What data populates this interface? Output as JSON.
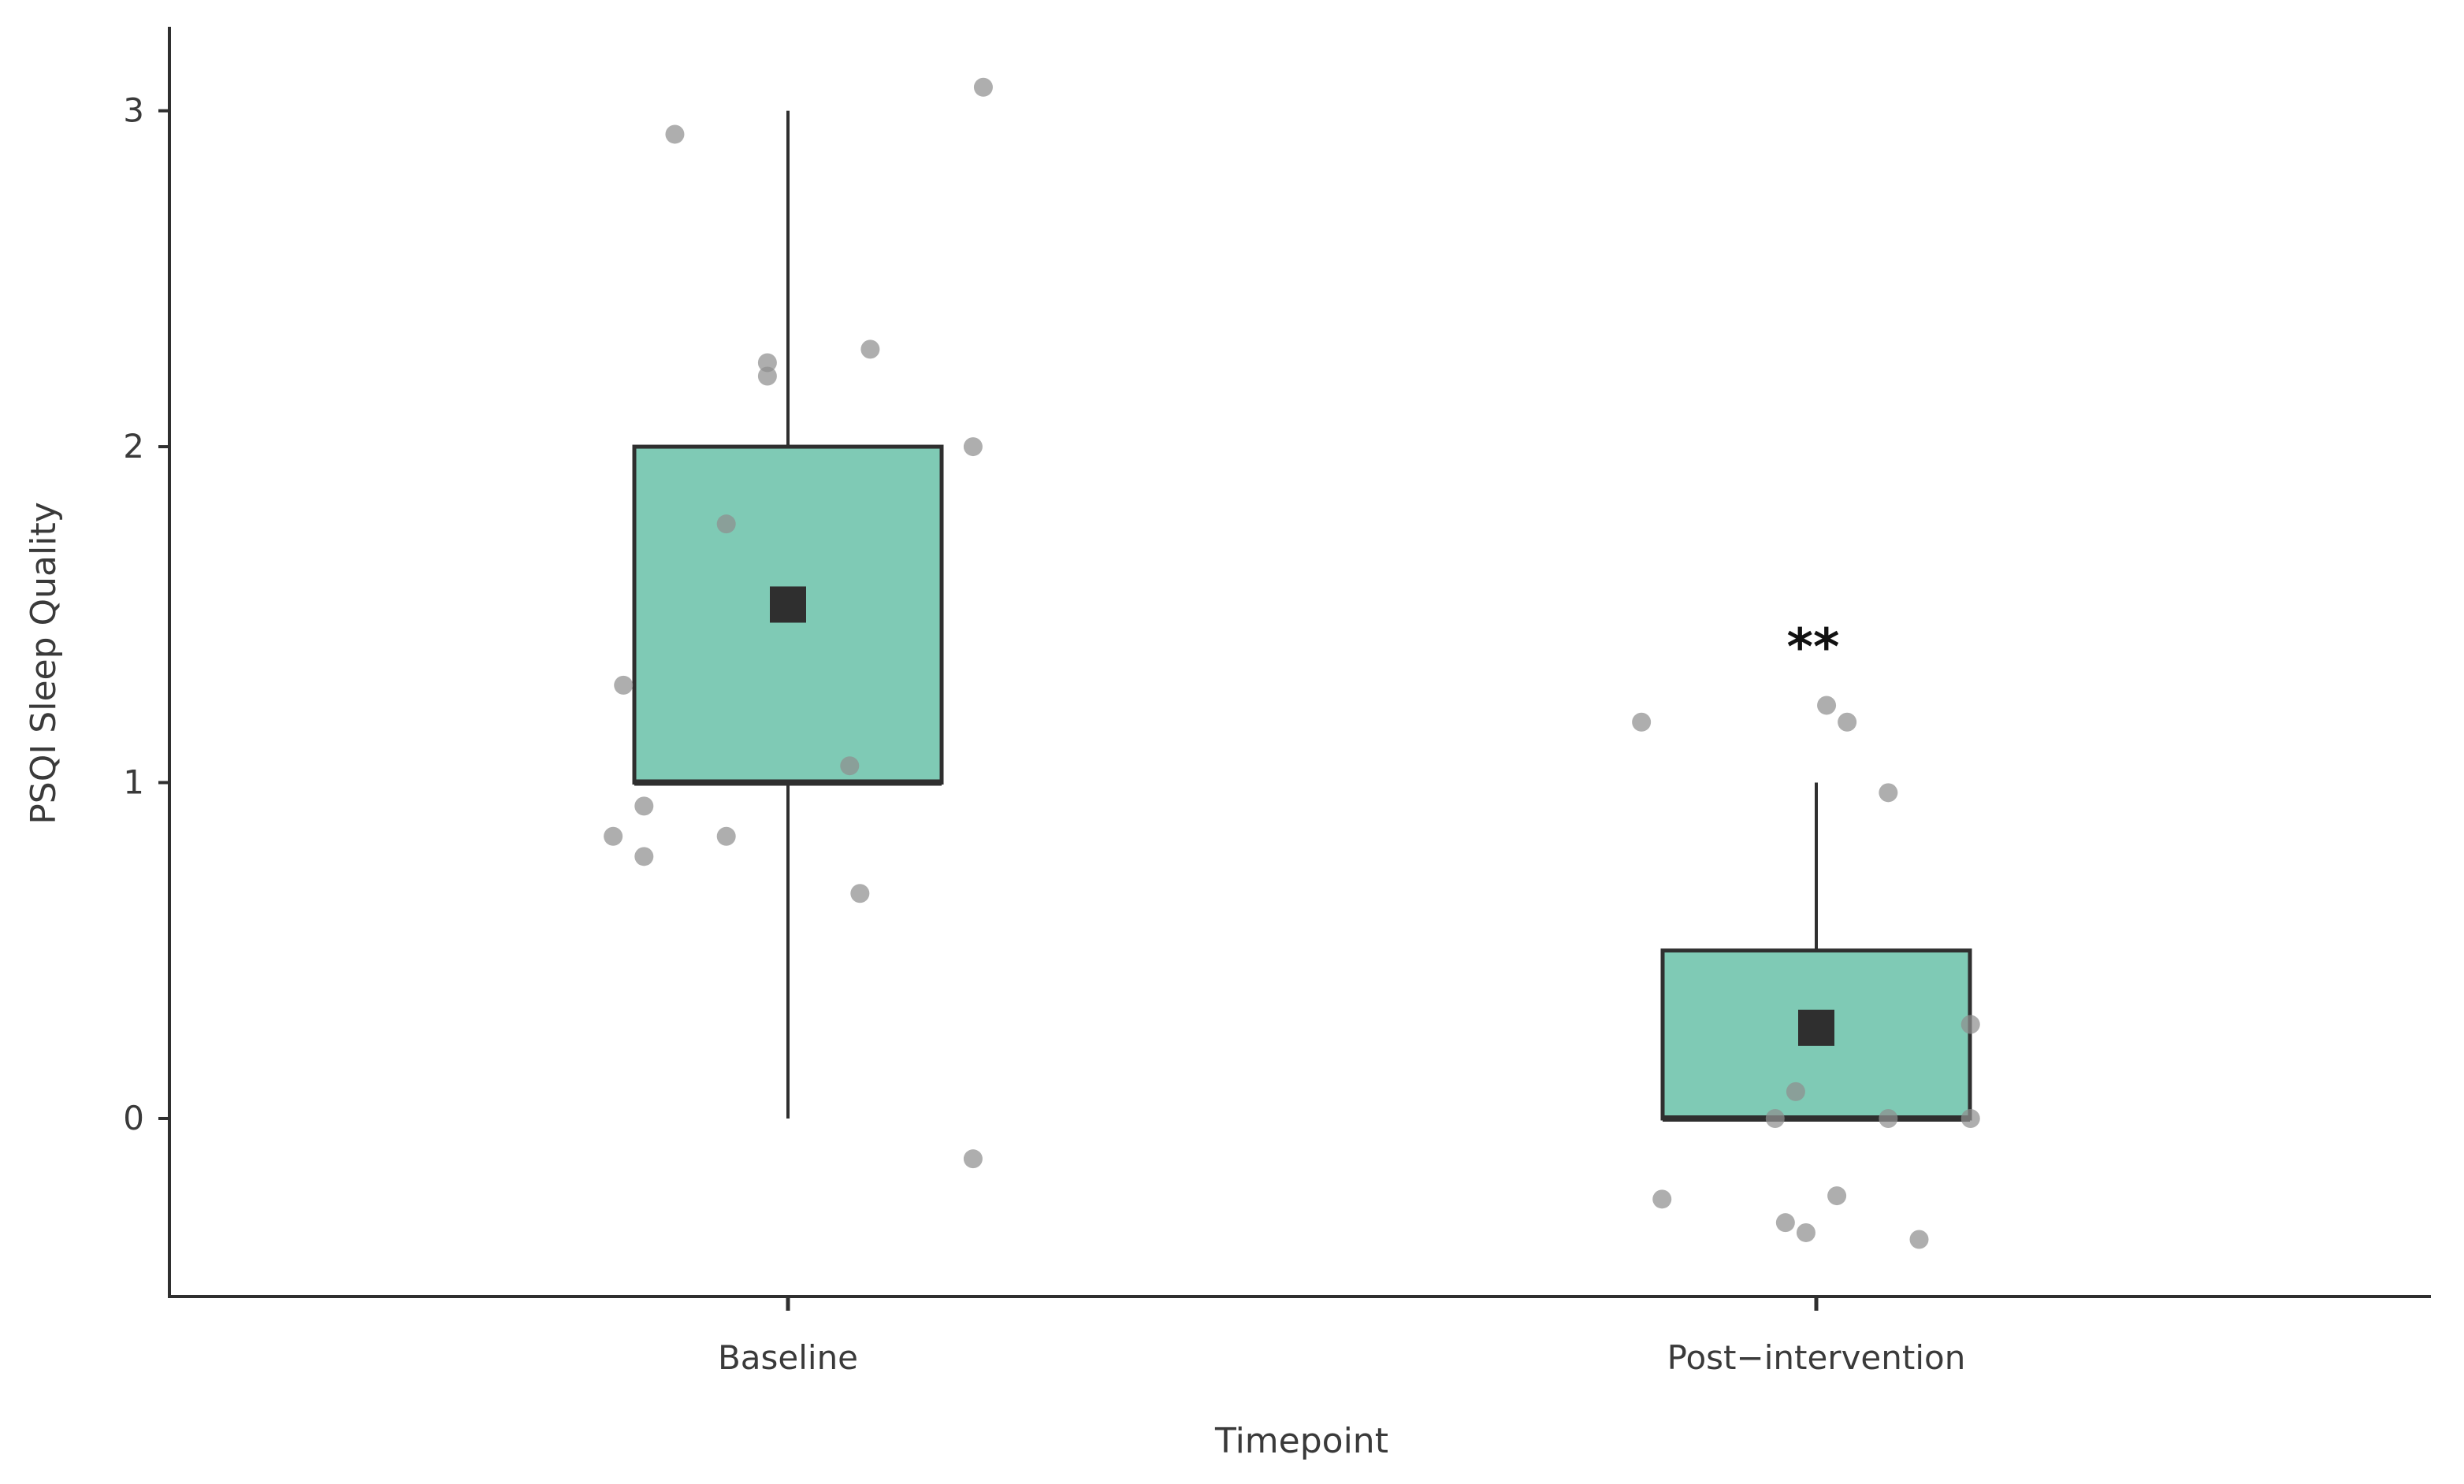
{
  "chart_data": {
    "type": "box",
    "xlabel": "Timepoint",
    "ylabel": "PSQI Sleep Quality",
    "categories": [
      "Baseline",
      "Post−intervention"
    ],
    "ylim": [
      -0.53,
      3.25
    ],
    "yticks": [
      0,
      1,
      2,
      3
    ],
    "grid": false,
    "legend": "none",
    "colors": {
      "box_fill": "#7fcab5",
      "box_stroke": "#2f2f2f",
      "point": "#8f8f8f",
      "mean": "#2f2f2f",
      "axis": "#2f2f2f"
    },
    "boxes": [
      {
        "category": "Baseline",
        "whisker_low": 0,
        "q1": 1,
        "median": 1,
        "q3": 2,
        "whisker_high": 3,
        "mean": 1.53,
        "annotation": ""
      },
      {
        "category": "Post−intervention",
        "whisker_low": 0,
        "q1": 0,
        "median": 0,
        "q3": 0.5,
        "whisker_high": 1,
        "mean": 0.27,
        "annotation": "**"
      }
    ],
    "points": [
      {
        "category": "Baseline",
        "x_jitter": -0.11,
        "y": 2.93
      },
      {
        "category": "Baseline",
        "x_jitter": 0.19,
        "y": 3.07
      },
      {
        "category": "Baseline",
        "x_jitter": -0.02,
        "y": 2.25
      },
      {
        "category": "Baseline",
        "x_jitter": -0.02,
        "y": 2.21
      },
      {
        "category": "Baseline",
        "x_jitter": 0.08,
        "y": 2.29
      },
      {
        "category": "Baseline",
        "x_jitter": 0.18,
        "y": 2.0
      },
      {
        "category": "Baseline",
        "x_jitter": -0.06,
        "y": 1.77
      },
      {
        "category": "Baseline",
        "x_jitter": -0.16,
        "y": 1.29
      },
      {
        "category": "Baseline",
        "x_jitter": 0.06,
        "y": 1.05
      },
      {
        "category": "Baseline",
        "x_jitter": -0.14,
        "y": 0.93
      },
      {
        "category": "Baseline",
        "x_jitter": -0.17,
        "y": 0.84
      },
      {
        "category": "Baseline",
        "x_jitter": -0.06,
        "y": 0.84
      },
      {
        "category": "Baseline",
        "x_jitter": -0.14,
        "y": 0.78
      },
      {
        "category": "Baseline",
        "x_jitter": 0.07,
        "y": 0.67
      },
      {
        "category": "Baseline",
        "x_jitter": 0.18,
        "y": -0.12
      },
      {
        "category": "Post−intervention",
        "x_jitter": -0.17,
        "y": 1.18
      },
      {
        "category": "Post−intervention",
        "x_jitter": 0.01,
        "y": 1.23
      },
      {
        "category": "Post−intervention",
        "x_jitter": 0.03,
        "y": 1.18
      },
      {
        "category": "Post−intervention",
        "x_jitter": 0.07,
        "y": 0.97
      },
      {
        "category": "Post−intervention",
        "x_jitter": 0.15,
        "y": 0.28
      },
      {
        "category": "Post−intervention",
        "x_jitter": -0.02,
        "y": 0.08
      },
      {
        "category": "Post−intervention",
        "x_jitter": -0.04,
        "y": 0.0
      },
      {
        "category": "Post−intervention",
        "x_jitter": 0.07,
        "y": 0.0
      },
      {
        "category": "Post−intervention",
        "x_jitter": 0.15,
        "y": 0.0
      },
      {
        "category": "Post−intervention",
        "x_jitter": -0.15,
        "y": -0.24
      },
      {
        "category": "Post−intervention",
        "x_jitter": 0.02,
        "y": -0.23
      },
      {
        "category": "Post−intervention",
        "x_jitter": -0.03,
        "y": -0.31
      },
      {
        "category": "Post−intervention",
        "x_jitter": -0.01,
        "y": -0.34
      },
      {
        "category": "Post−intervention",
        "x_jitter": 0.1,
        "y": -0.36
      }
    ]
  }
}
